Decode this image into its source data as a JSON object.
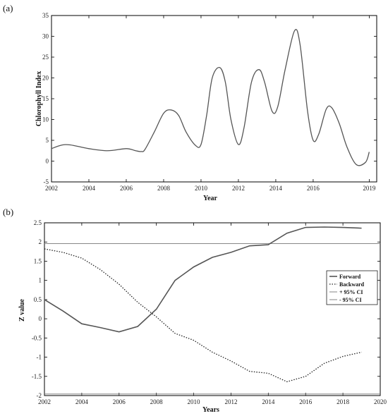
{
  "panel_a_label": "(a)",
  "panel_b_label": "(b)",
  "colors": {
    "line": "#555555",
    "axis": "#000000",
    "ci": "#777777"
  },
  "chart_data": [
    {
      "type": "line",
      "title": "",
      "xlabel": "Year",
      "ylabel": "Chlorophyll Index",
      "xlim": [
        2002,
        2019.4
      ],
      "ylim": [
        -5,
        35
      ],
      "xticks": [
        2002,
        2004,
        2006,
        2008,
        2010,
        2012,
        2014,
        2016,
        2019
      ],
      "yticks": [
        -5,
        0,
        5,
        10,
        15,
        20,
        25,
        30,
        35
      ],
      "grid": false,
      "series": [
        {
          "x": [
            2002,
            2002.5,
            2003,
            2004,
            2005,
            2006,
            2006.5,
            2006.8,
            2007,
            2007.5,
            2008,
            2008.4,
            2008.8,
            2009.2,
            2009.7,
            2010,
            2010.3,
            2010.6,
            2011,
            2011.3,
            2011.6,
            2012,
            2012.3,
            2012.7,
            2013.1,
            2013.4,
            2013.8,
            2014.1,
            2014.5,
            2015,
            2015.3,
            2015.7,
            2016,
            2016.3,
            2016.7,
            2017,
            2017.4,
            2017.8,
            2018.3,
            2018.8,
            2019
          ],
          "values": [
            3.0,
            3.8,
            3.9,
            3.0,
            2.5,
            3.0,
            2.5,
            2.3,
            2.8,
            7.0,
            11.5,
            12.3,
            11.0,
            7.0,
            3.8,
            4.0,
            11.0,
            20.0,
            22.5,
            19.0,
            10.0,
            4.0,
            8.0,
            19.0,
            22.0,
            19.0,
            12.0,
            13.0,
            22.0,
            31.3,
            28.0,
            12.0,
            5.0,
            6.5,
            12.5,
            12.8,
            9.0,
            3.5,
            -0.8,
            -0.3,
            2.2
          ]
        }
      ]
    },
    {
      "type": "line",
      "title": "",
      "xlabel": "Years",
      "ylabel": "Z value",
      "xlim": [
        2002,
        2020
      ],
      "ylim": [
        -2,
        2.5
      ],
      "xticks": [
        2002,
        2004,
        2006,
        2008,
        2010,
        2012,
        2014,
        2016,
        2018,
        2020
      ],
      "yticks": [
        -2,
        -1.5,
        -1,
        -0.5,
        0,
        0.5,
        1,
        1.5,
        2,
        2.5
      ],
      "grid": false,
      "legend": "right",
      "series": [
        {
          "name": "Forward",
          "style": "solid",
          "x": [
            2002,
            2003,
            2004,
            2005,
            2006,
            2007,
            2008,
            2009,
            2010,
            2011,
            2012,
            2013,
            2014,
            2015,
            2016,
            2017,
            2018,
            2019
          ],
          "values": [
            0.5,
            0.2,
            -0.13,
            -0.23,
            -0.34,
            -0.2,
            0.25,
            1.0,
            1.35,
            1.6,
            1.73,
            1.9,
            1.93,
            2.23,
            2.38,
            2.39,
            2.38,
            2.36
          ]
        },
        {
          "name": "Backward",
          "style": "dotted",
          "x": [
            2002,
            2003,
            2004,
            2005,
            2006,
            2007,
            2008,
            2009,
            2010,
            2011,
            2012,
            2013,
            2014,
            2015,
            2016,
            2017,
            2018,
            2019
          ],
          "values": [
            1.82,
            1.73,
            1.58,
            1.28,
            0.9,
            0.43,
            0.05,
            -0.38,
            -0.56,
            -0.87,
            -1.1,
            -1.37,
            -1.42,
            -1.64,
            -1.5,
            -1.16,
            -0.98,
            -0.87
          ]
        },
        {
          "name": "+ 95% CI",
          "style": "ci",
          "constant": 1.96
        },
        {
          "name": "- 95% CI",
          "style": "ci",
          "constant": -1.96
        }
      ]
    }
  ]
}
